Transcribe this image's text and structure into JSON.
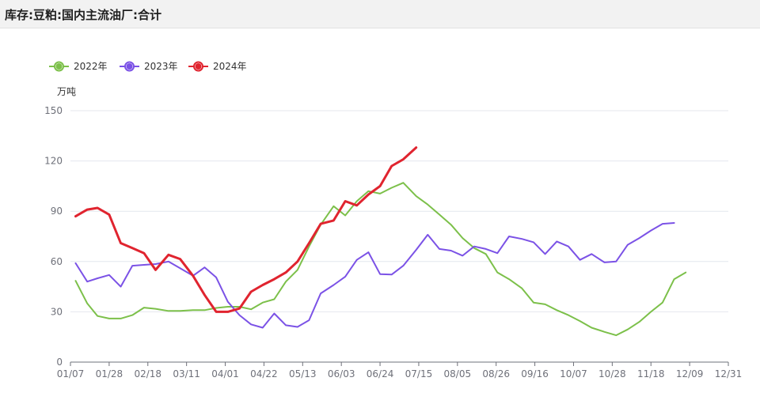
{
  "header": {
    "title": "库存:豆粕:国内主流油厂:合计"
  },
  "chart_data": {
    "type": "line",
    "title": "库存:豆粕:国内主流油厂:合计",
    "ylabel": "万吨",
    "ylim": [
      0,
      150
    ],
    "yticks": [
      0,
      30,
      60,
      90,
      120,
      150
    ],
    "xlim": [
      0,
      51
    ],
    "xticks": [
      {
        "pos": 0,
        "label": "01/07"
      },
      {
        "pos": 3,
        "label": "01/28"
      },
      {
        "pos": 6,
        "label": "02/18"
      },
      {
        "pos": 9,
        "label": "03/11"
      },
      {
        "pos": 12,
        "label": "04/01"
      },
      {
        "pos": 15,
        "label": "04/22"
      },
      {
        "pos": 18,
        "label": "05/13"
      },
      {
        "pos": 21,
        "label": "06/03"
      },
      {
        "pos": 24,
        "label": "06/24"
      },
      {
        "pos": 27,
        "label": "07/15"
      },
      {
        "pos": 30,
        "label": "08/05"
      },
      {
        "pos": 33,
        "label": "08/26"
      },
      {
        "pos": 36,
        "label": "09/16"
      },
      {
        "pos": 39,
        "label": "10/07"
      },
      {
        "pos": 42,
        "label": "10/28"
      },
      {
        "pos": 45,
        "label": "11/18"
      },
      {
        "pos": 48,
        "label": "12/09"
      },
      {
        "pos": 51,
        "label": "12/31"
      }
    ],
    "grid": true,
    "legend_position": "top-left",
    "series": [
      {
        "name": "2022年",
        "color": "#7cc04a",
        "width": 2,
        "points": [
          [
            0.4,
            48.5
          ],
          [
            1.3,
            35
          ],
          [
            2.1,
            27.5
          ],
          [
            3,
            26
          ],
          [
            3.9,
            26
          ],
          [
            4.8,
            28
          ],
          [
            5.7,
            32.5
          ],
          [
            6.6,
            31.8
          ],
          [
            7.6,
            30.5
          ],
          [
            8.5,
            30.5
          ],
          [
            9.5,
            31
          ],
          [
            10.4,
            31
          ],
          [
            11.3,
            32.3
          ],
          [
            12.2,
            33
          ],
          [
            13.1,
            33
          ],
          [
            14,
            31.5
          ],
          [
            14.9,
            35.5
          ],
          [
            15.8,
            37.5
          ],
          [
            16.7,
            48
          ],
          [
            17.6,
            55
          ],
          [
            18.5,
            69
          ],
          [
            19.4,
            82
          ],
          [
            20.4,
            93
          ],
          [
            21.3,
            87.5
          ],
          [
            22.2,
            96
          ],
          [
            23.1,
            102
          ],
          [
            24,
            100.5
          ],
          [
            24.9,
            104
          ],
          [
            25.8,
            107
          ],
          [
            26.8,
            99
          ],
          [
            27.7,
            94
          ],
          [
            28.6,
            88
          ],
          [
            29.5,
            82
          ],
          [
            30.4,
            74
          ],
          [
            31.3,
            68
          ],
          [
            32.2,
            64.5
          ],
          [
            33.1,
            53.5
          ],
          [
            34,
            49.5
          ],
          [
            35,
            44
          ],
          [
            35.9,
            35.5
          ],
          [
            36.8,
            34.5
          ],
          [
            37.7,
            31
          ],
          [
            38.6,
            28
          ],
          [
            39.5,
            24.5
          ],
          [
            40.4,
            20.5
          ],
          [
            41.4,
            18
          ],
          [
            42.3,
            16
          ],
          [
            43.2,
            19.5
          ],
          [
            44.1,
            24
          ],
          [
            45,
            30
          ],
          [
            45.9,
            35.5
          ],
          [
            46.8,
            49.5
          ],
          [
            47.7,
            53.5
          ]
        ]
      },
      {
        "name": "2023年",
        "color": "#7b52e6",
        "width": 2,
        "points": [
          [
            0.4,
            59
          ],
          [
            1.3,
            48
          ],
          [
            2.1,
            50
          ],
          [
            3,
            52
          ],
          [
            3.9,
            45
          ],
          [
            4.8,
            57.5
          ],
          [
            5.7,
            58
          ],
          [
            6.6,
            58.5
          ],
          [
            7.6,
            60
          ],
          [
            8.5,
            56
          ],
          [
            9.5,
            51.5
          ],
          [
            10.4,
            56.5
          ],
          [
            11.3,
            50.5
          ],
          [
            12.2,
            36
          ],
          [
            13.1,
            28
          ],
          [
            14,
            22.5
          ],
          [
            14.9,
            20.5
          ],
          [
            15.8,
            29
          ],
          [
            16.7,
            22
          ],
          [
            17.6,
            21
          ],
          [
            18.5,
            25
          ],
          [
            19.4,
            41
          ],
          [
            20.4,
            46
          ],
          [
            21.3,
            51
          ],
          [
            22.2,
            61
          ],
          [
            23.1,
            65.5
          ],
          [
            24,
            52.5
          ],
          [
            24.9,
            52.2
          ],
          [
            25.8,
            57.5
          ],
          [
            26.8,
            67
          ],
          [
            27.7,
            76
          ],
          [
            28.6,
            67.5
          ],
          [
            29.5,
            66.5
          ],
          [
            30.4,
            63.5
          ],
          [
            31.3,
            69
          ],
          [
            32.2,
            67.5
          ],
          [
            33.1,
            65
          ],
          [
            34,
            75
          ],
          [
            35,
            73.5
          ],
          [
            35.9,
            71.5
          ],
          [
            36.8,
            64.5
          ],
          [
            37.7,
            72
          ],
          [
            38.6,
            69
          ],
          [
            39.5,
            61
          ],
          [
            40.4,
            64.5
          ],
          [
            41.4,
            59.5
          ],
          [
            42.3,
            60
          ],
          [
            43.2,
            70
          ],
          [
            44.1,
            74
          ],
          [
            45,
            78.5
          ],
          [
            45.9,
            82.5
          ],
          [
            46.8,
            83
          ]
        ]
      },
      {
        "name": "2024年",
        "color": "#e0242f",
        "width": 3,
        "points": [
          [
            0.4,
            87
          ],
          [
            1.3,
            91
          ],
          [
            2.1,
            92
          ],
          [
            3,
            88
          ],
          [
            3.9,
            71
          ],
          [
            4.8,
            68
          ],
          [
            5.7,
            65
          ],
          [
            6.6,
            55
          ],
          [
            7.6,
            64
          ],
          [
            8.5,
            61.5
          ],
          [
            9.5,
            51.5
          ],
          [
            10.4,
            40
          ],
          [
            11.3,
            30
          ],
          [
            12.2,
            30
          ],
          [
            13.1,
            32
          ],
          [
            14,
            42
          ],
          [
            14.9,
            46
          ],
          [
            15.8,
            49.5
          ],
          [
            16.7,
            53.5
          ],
          [
            17.6,
            60
          ],
          [
            18.5,
            71
          ],
          [
            19.4,
            82.5
          ],
          [
            20.4,
            84.5
          ],
          [
            21.3,
            96
          ],
          [
            22.2,
            93.5
          ],
          [
            23.1,
            100
          ],
          [
            24,
            105
          ],
          [
            24.9,
            117
          ],
          [
            25.8,
            121
          ],
          [
            26.8,
            128
          ]
        ]
      }
    ]
  }
}
